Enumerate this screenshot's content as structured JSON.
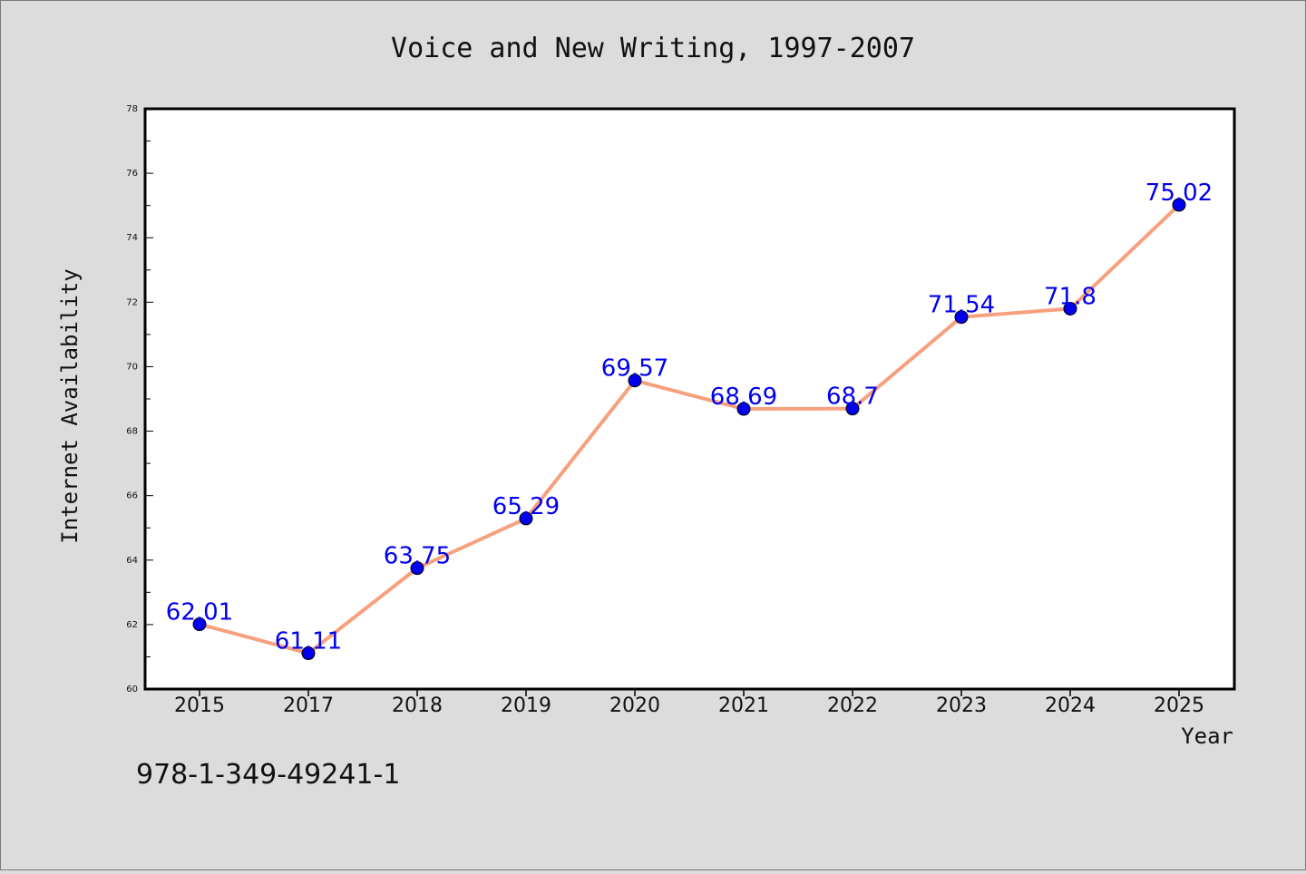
{
  "chart_data": {
    "type": "line",
    "title": "Voice and New Writing, 1997-2007",
    "xlabel": "Year",
    "ylabel": "Internet Availability",
    "categories": [
      "2015",
      "2017",
      "2018",
      "2019",
      "2020",
      "2021",
      "2022",
      "2023",
      "2024",
      "2025"
    ],
    "series": [
      {
        "values": [
          62.01,
          61.11,
          63.75,
          65.29,
          69.57,
          68.69,
          68.7,
          71.54,
          71.8,
          75.02
        ],
        "data_labels": [
          "62.01",
          "61.11",
          "63.75",
          "65.29",
          "69.57",
          "68.69",
          "68.7",
          "71.54",
          "71.8",
          "75.02"
        ]
      }
    ],
    "ylim": [
      60,
      78
    ],
    "yticks": [
      "60",
      "62",
      "64",
      "66",
      "68",
      "70",
      "72",
      "74",
      "76",
      "78"
    ],
    "grid": false,
    "line_color": "#f7a07e",
    "marker_color": "#0000ee",
    "label_color": "#0000ee"
  },
  "annotation": "978-1-349-49241-1"
}
